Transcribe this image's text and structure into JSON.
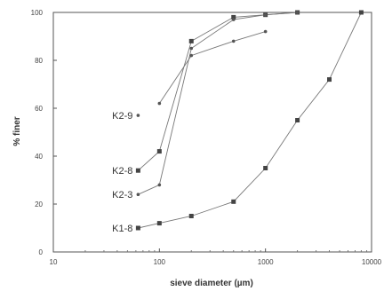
{
  "chart_data": {
    "type": "scatter",
    "title": "",
    "xlabel": "sieve diameter (µm)",
    "ylabel": "% finer",
    "xscale": "log",
    "xlim": [
      10,
      10000
    ],
    "ylim": [
      0,
      100
    ],
    "xticks": [
      10,
      100,
      1000,
      10000
    ],
    "xtick_labels": [
      "10",
      "100",
      "1000",
      "10000"
    ],
    "yticks": [
      0,
      20,
      40,
      60,
      80,
      100
    ],
    "ytick_labels": [
      "0",
      "20",
      "40",
      "60",
      "80",
      "100"
    ],
    "grid": false,
    "series": [
      {
        "name": "K2-9",
        "marker": "dot",
        "x": [
          63,
          100,
          200,
          500,
          1000
        ],
        "y": [
          57,
          62,
          82,
          88,
          92
        ]
      },
      {
        "name": "K2-8",
        "marker": "square",
        "x": [
          63,
          100,
          200,
          500,
          1000,
          2000
        ],
        "y": [
          34,
          42,
          88,
          98,
          99,
          100
        ]
      },
      {
        "name": "K2-3",
        "marker": "dot",
        "x": [
          63,
          100,
          200,
          500,
          1000,
          2000
        ],
        "y": [
          24,
          28,
          85,
          97,
          99,
          100
        ]
      },
      {
        "name": "K1-8",
        "marker": "square",
        "x": [
          63,
          100,
          200,
          500,
          1000,
          2000,
          4000,
          8000
        ],
        "y": [
          10,
          12,
          15,
          21,
          35,
          55,
          72,
          100
        ]
      }
    ]
  }
}
